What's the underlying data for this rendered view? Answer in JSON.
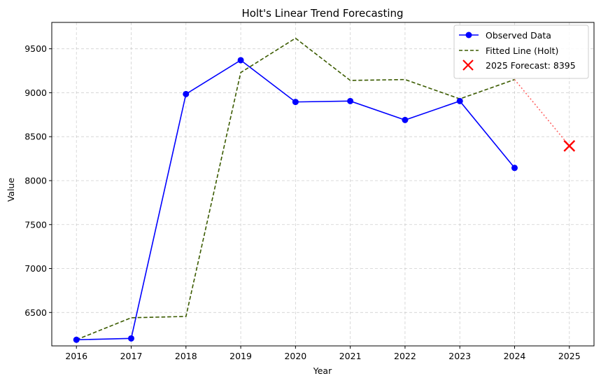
{
  "chart_data": {
    "type": "line",
    "title": "Holt's Linear Trend Forecasting",
    "xlabel": "Year",
    "ylabel": "Value",
    "xlim": [
      2015.55,
      2025.45
    ],
    "ylim": [
      6120,
      9800
    ],
    "x_ticks": [
      2016,
      2017,
      2018,
      2019,
      2020,
      2021,
      2022,
      2023,
      2024,
      2025
    ],
    "y_ticks": [
      6500,
      7000,
      7500,
      8000,
      8500,
      9000,
      9500
    ],
    "grid": true,
    "legend_position": "top-right",
    "series": [
      {
        "name": "Observed Data",
        "color": "#0000ff",
        "style": "solid-with-markers",
        "x": [
          2016,
          2017,
          2018,
          2019,
          2020,
          2021,
          2022,
          2023,
          2024
        ],
        "values": [
          6190,
          6205,
          8985,
          9370,
          8895,
          8905,
          8690,
          8905,
          8145
        ]
      },
      {
        "name": "Fitted Line (Holt)",
        "color": "#3b5b00",
        "style": "dashed",
        "x": [
          2016,
          2017,
          2018,
          2019,
          2020,
          2021,
          2022,
          2023,
          2024
        ],
        "values": [
          6190,
          6440,
          6455,
          9230,
          9620,
          9140,
          9150,
          8930,
          9150
        ]
      }
    ],
    "forecast": {
      "name": "2025 Forecast: 8395",
      "x": 2025,
      "value": 8395,
      "color": "#ff0000",
      "connector_from": {
        "x": 2024,
        "value": 9150
      },
      "connector_color": "#ff6666"
    }
  }
}
